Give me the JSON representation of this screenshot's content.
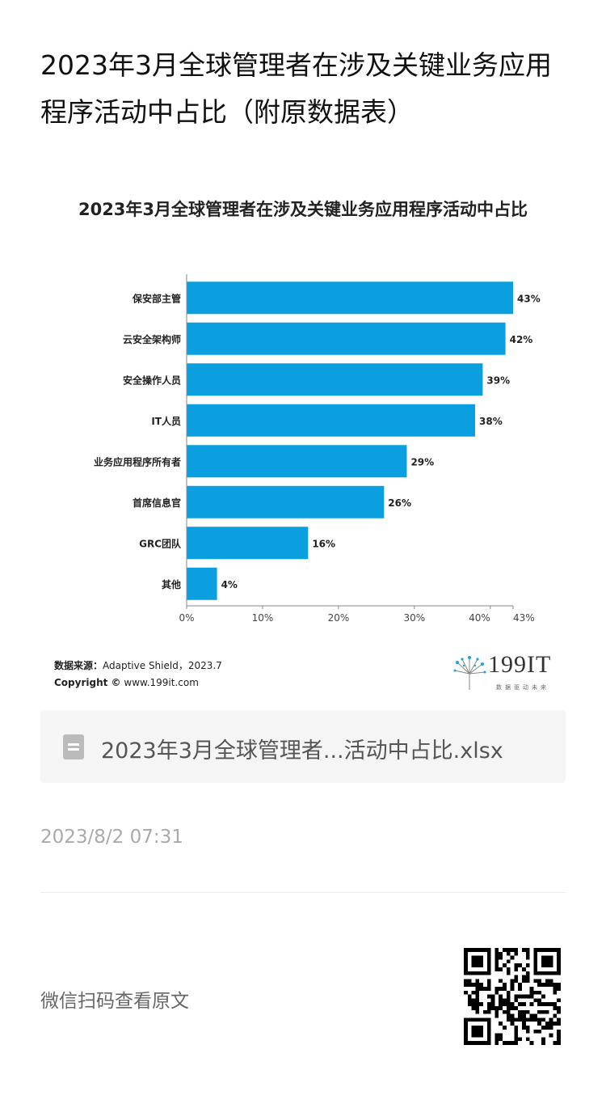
{
  "article": {
    "title": "2023年3月全球管理者在涉及关键业务应用程序活动中占比（附原数据表）"
  },
  "chart_data": {
    "type": "bar",
    "orientation": "horizontal",
    "title": "2023年3月全球管理者在涉及关键业务应用程序活动中占比",
    "categories": [
      "保安部主管",
      "云安全架构师",
      "安全操作人员",
      "IT人员",
      "业务应用程序所有者",
      "首席信息官",
      "GRC团队",
      "其他"
    ],
    "values": [
      43,
      42,
      39,
      38,
      29,
      26,
      16,
      4
    ],
    "value_labels": [
      "43%",
      "42%",
      "39%",
      "38%",
      "29%",
      "26%",
      "16%",
      "4%"
    ],
    "xlim": [
      0,
      43
    ],
    "x_ticks": [
      0,
      10,
      20,
      30,
      40,
      43
    ],
    "x_tick_labels": [
      "0%",
      "10%",
      "20%",
      "30%",
      "40%",
      "43%"
    ],
    "bar_color": "#0b9fe0",
    "grid": false,
    "legend": "none"
  },
  "source": {
    "label": "数据来源：",
    "text": "Adaptive Shield，2023.7",
    "copyright_label": "Copyright ©",
    "copyright_text": "www.199it.com"
  },
  "logo": {
    "text": "199IT",
    "tagline": "数据驱动未来"
  },
  "attachment": {
    "icon": "spreadsheet-file-icon",
    "filename": "2023年3月全球管理者...活动中占比.xlsx"
  },
  "timestamp": "2023/8/2 07:31",
  "footer": {
    "scan_text": "微信扫码查看原文",
    "qr_icon": "qr-code-icon"
  }
}
